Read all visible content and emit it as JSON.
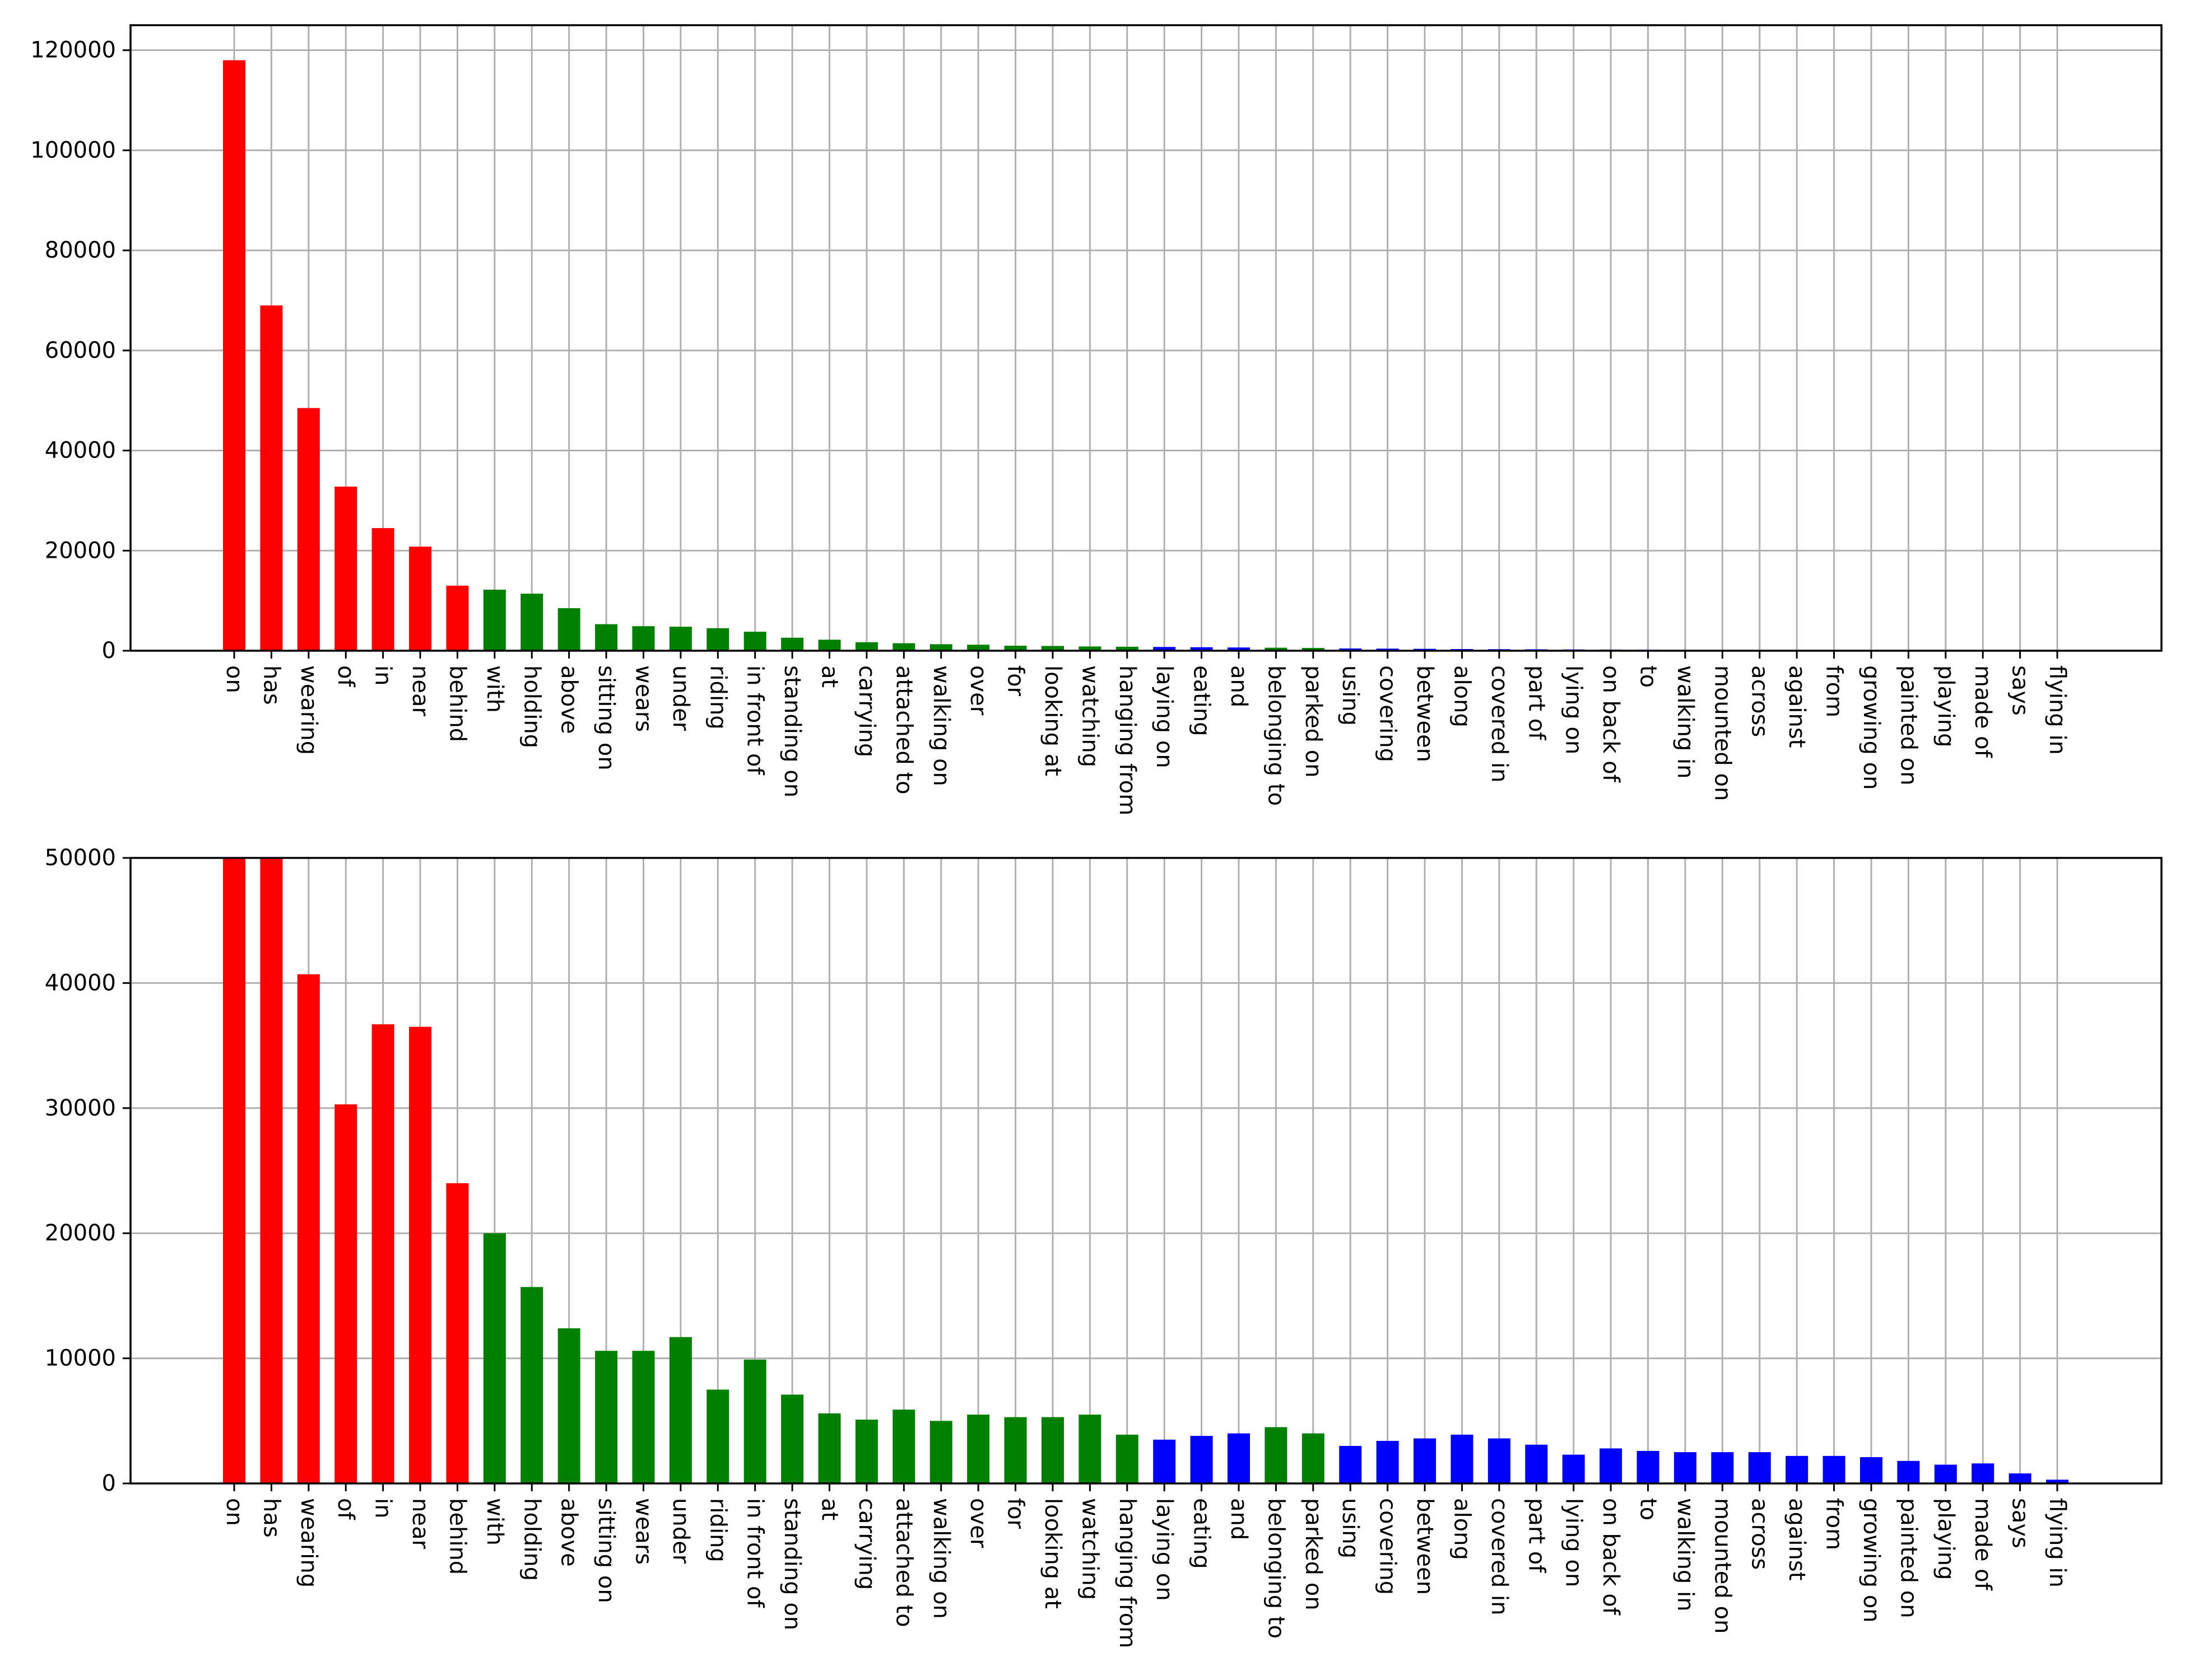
{
  "chart_data": [
    {
      "type": "bar",
      "title": "",
      "xlabel": "",
      "ylabel": "",
      "ylim": [
        0,
        125000
      ],
      "yticks": [
        0,
        20000,
        40000,
        60000,
        80000,
        100000,
        120000
      ],
      "grid": true,
      "categories": [
        "on",
        "has",
        "wearing",
        "of",
        "in",
        "near",
        "behind",
        "with",
        "holding",
        "above",
        "sitting on",
        "wears",
        "under",
        "riding",
        "in front of",
        "standing on",
        "at",
        "carrying",
        "attached to",
        "walking on",
        "over",
        "for",
        "looking at",
        "watching",
        "hanging from",
        "laying on",
        "eating",
        "and",
        "belonging to",
        "parked on",
        "using",
        "covering",
        "between",
        "along",
        "covered in",
        "part of",
        "lying on",
        "on back of",
        "to",
        "walking in",
        "mounted on",
        "across",
        "against",
        "from",
        "growing on",
        "painted on",
        "playing",
        "made of",
        "says",
        "flying in"
      ],
      "values": [
        118000,
        69000,
        48500,
        32800,
        24500,
        20800,
        13000,
        12200,
        11400,
        8500,
        5300,
        4900,
        4800,
        4500,
        3800,
        2600,
        2200,
        1700,
        1500,
        1300,
        1200,
        1000,
        950,
        850,
        800,
        750,
        700,
        650,
        600,
        550,
        450,
        420,
        380,
        330,
        300,
        280,
        250,
        230,
        200,
        180,
        160,
        140,
        130,
        120,
        100,
        90,
        80,
        60,
        40,
        20
      ],
      "group_colors": [
        "red",
        "red",
        "red",
        "red",
        "red",
        "red",
        "red",
        "green",
        "green",
        "green",
        "green",
        "green",
        "green",
        "green",
        "green",
        "green",
        "green",
        "green",
        "green",
        "green",
        "green",
        "green",
        "green",
        "green",
        "green",
        "blue",
        "blue",
        "blue",
        "green",
        "green",
        "blue",
        "blue",
        "blue",
        "blue",
        "blue",
        "blue",
        "blue",
        "blue",
        "blue",
        "blue",
        "blue",
        "blue",
        "blue",
        "blue",
        "blue",
        "blue",
        "blue",
        "blue",
        "blue",
        "blue"
      ]
    },
    {
      "type": "bar",
      "title": "",
      "xlabel": "",
      "ylabel": "",
      "ylim": [
        0,
        50000
      ],
      "yticks": [
        0,
        10000,
        20000,
        30000,
        40000,
        50000
      ],
      "grid": true,
      "categories": [
        "on",
        "has",
        "wearing",
        "of",
        "in",
        "near",
        "behind",
        "with",
        "holding",
        "above",
        "sitting on",
        "wears",
        "under",
        "riding",
        "in front of",
        "standing on",
        "at",
        "carrying",
        "attached to",
        "walking on",
        "over",
        "for",
        "looking at",
        "watching",
        "hanging from",
        "laying on",
        "eating",
        "and",
        "belonging to",
        "parked on",
        "using",
        "covering",
        "between",
        "along",
        "covered in",
        "part of",
        "lying on",
        "on back of",
        "to",
        "walking in",
        "mounted on",
        "across",
        "against",
        "from",
        "growing on",
        "painted on",
        "playing",
        "made of",
        "says",
        "flying in"
      ],
      "values": [
        50000,
        50000,
        40700,
        30300,
        36700,
        36500,
        24000,
        20000,
        15700,
        12400,
        10600,
        10600,
        11700,
        7500,
        9900,
        7100,
        5600,
        5100,
        5900,
        5000,
        5500,
        5300,
        5300,
        5500,
        3900,
        3500,
        3800,
        4000,
        4500,
        4000,
        3000,
        3400,
        3600,
        3900,
        3600,
        3100,
        2300,
        2800,
        2600,
        2500,
        2500,
        2500,
        2200,
        2200,
        2100,
        1800,
        1500,
        1600,
        800,
        300
      ],
      "group_colors": [
        "red",
        "red",
        "red",
        "red",
        "red",
        "red",
        "red",
        "green",
        "green",
        "green",
        "green",
        "green",
        "green",
        "green",
        "green",
        "green",
        "green",
        "green",
        "green",
        "green",
        "green",
        "green",
        "green",
        "green",
        "green",
        "blue",
        "blue",
        "blue",
        "green",
        "green",
        "blue",
        "blue",
        "blue",
        "blue",
        "blue",
        "blue",
        "blue",
        "blue",
        "blue",
        "blue",
        "blue",
        "blue",
        "blue",
        "blue",
        "blue",
        "blue",
        "blue",
        "blue",
        "blue",
        "blue"
      ]
    }
  ],
  "colors": {
    "red": "#ff0000",
    "green": "#008000",
    "blue": "#0000ff",
    "grid": "#b0b0b0",
    "axis": "#000000"
  }
}
